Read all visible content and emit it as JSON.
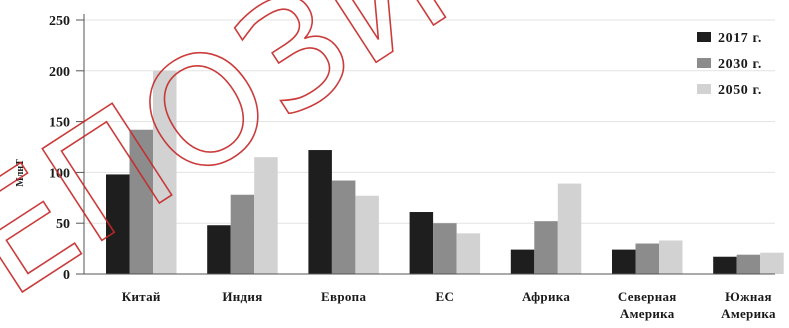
{
  "chart_data": {
    "type": "bar",
    "title": "",
    "xlabel": "",
    "ylabel": "МлнТ",
    "ylim": [
      0,
      250
    ],
    "yticks": [
      0,
      50,
      100,
      150,
      200,
      250
    ],
    "grid": "horizontal",
    "legend_position": "top-right",
    "categories": [
      [
        "Китай"
      ],
      [
        "Индия"
      ],
      [
        "Европа"
      ],
      [
        "ЕС"
      ],
      [
        "Африка"
      ],
      [
        "Северная",
        "Америка"
      ],
      [
        "Южная",
        "Америка"
      ]
    ],
    "series": [
      {
        "name": "2017 г.",
        "color": "#1e1e1e",
        "values": [
          98,
          48,
          122,
          61,
          24,
          24,
          17
        ]
      },
      {
        "name": "2030 г.",
        "color": "#8c8c8c",
        "values": [
          142,
          78,
          92,
          50,
          52,
          30,
          19
        ]
      },
      {
        "name": "2050 г.",
        "color": "#d2d2d2",
        "values": [
          200,
          115,
          77,
          40,
          89,
          33,
          21
        ]
      }
    ]
  },
  "watermark": {
    "text": "ЕПОЗИ",
    "color": "#c62828"
  }
}
